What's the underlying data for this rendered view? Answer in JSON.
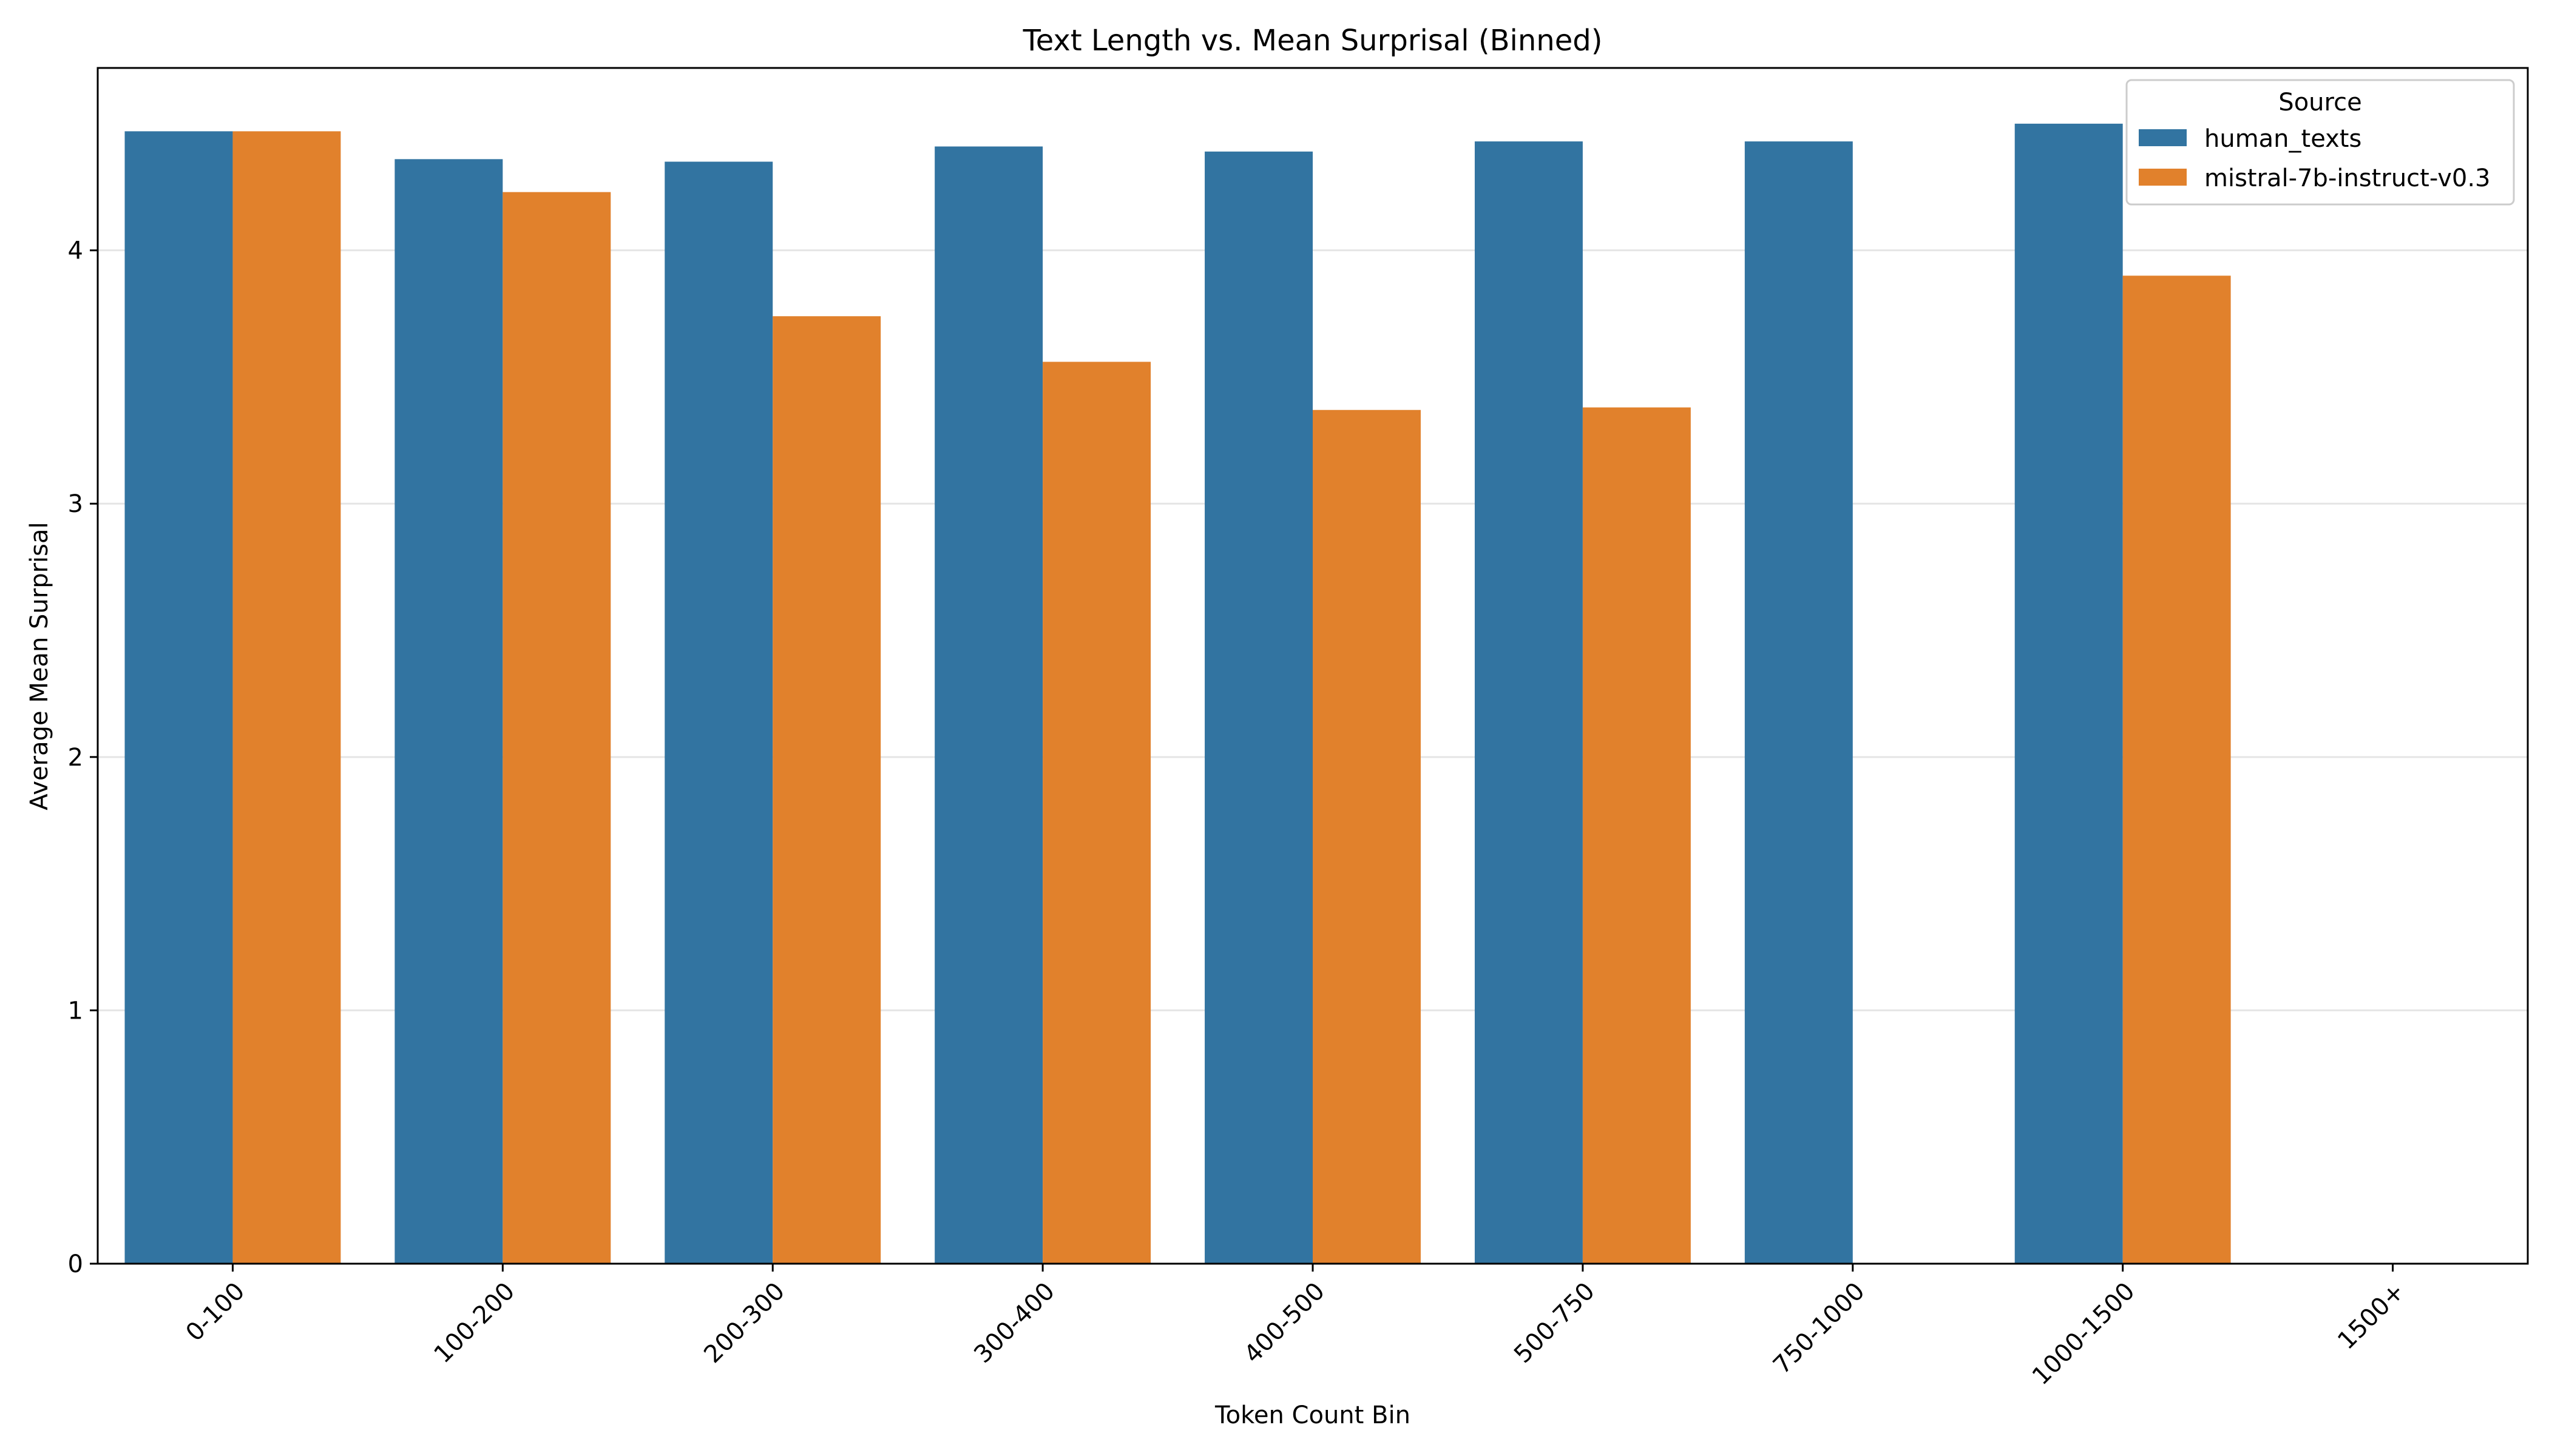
{
  "chart_data": {
    "type": "bar",
    "title": "Text Length vs. Mean Surprisal (Binned)",
    "xlabel": "Token Count Bin",
    "ylabel": "Average Mean Surprisal",
    "categories": [
      "0-100",
      "100-200",
      "200-300",
      "300-400",
      "400-500",
      "500-750",
      "750-1000",
      "1000-1500",
      "1500+"
    ],
    "series": [
      {
        "name": "human_texts",
        "color": "#3274a1",
        "values": [
          4.47,
          4.36,
          4.35,
          4.41,
          4.39,
          4.43,
          4.43,
          4.5,
          null
        ]
      },
      {
        "name": "mistral-7b-instruct-v0.3",
        "color": "#e1812c",
        "values": [
          4.47,
          4.23,
          3.74,
          3.56,
          3.37,
          3.38,
          null,
          3.9,
          null
        ]
      }
    ],
    "ylim": [
      0,
      4.72
    ],
    "yticks": [
      0,
      1,
      2,
      3,
      4
    ],
    "grid": true,
    "legend": {
      "title": "Source",
      "placement": "top-right"
    }
  }
}
